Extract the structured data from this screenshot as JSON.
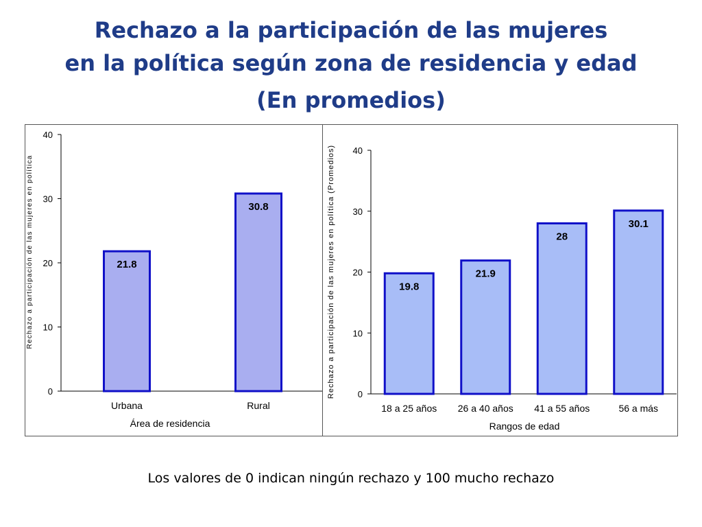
{
  "title": {
    "line1": "Rechazo a la participación de las mujeres",
    "line2": "en la política según zona de residencia y edad",
    "line3": "(En promedios)"
  },
  "footnote": "Los valores de 0 indican ningún rechazo y 100 mucho rechazo",
  "colors": {
    "title": "#1f3c88",
    "left_bar_fill": "#a9aef0",
    "right_bar_fill": "#a8bdf7",
    "bar_border": "#1010c8"
  },
  "chart_data": [
    {
      "type": "bar",
      "categories": [
        "Urbana",
        "Rural"
      ],
      "values": [
        21.8,
        30.8
      ],
      "value_labels": [
        "21.8",
        "30.8"
      ],
      "xlabel": "Área de residencia",
      "ylabel": "Rechazo a participación de las mujeres en política",
      "ylim": [
        0,
        40
      ],
      "yticks": [
        0,
        10,
        20,
        30,
        40
      ],
      "grid": false
    },
    {
      "type": "bar",
      "categories": [
        "18 a 25 años",
        "26 a 40 años",
        "41 a 55 años",
        "56 a más"
      ],
      "values": [
        19.8,
        21.9,
        28,
        30.1
      ],
      "value_labels": [
        "19.8",
        "21.9",
        "28",
        "30.1"
      ],
      "xlabel": "Rangos de edad",
      "ylabel": "Rechazo a participación de las mujeres en política (Promedios)",
      "ylim": [
        0,
        40
      ],
      "yticks": [
        0,
        10,
        20,
        30,
        40
      ],
      "grid": false
    }
  ]
}
